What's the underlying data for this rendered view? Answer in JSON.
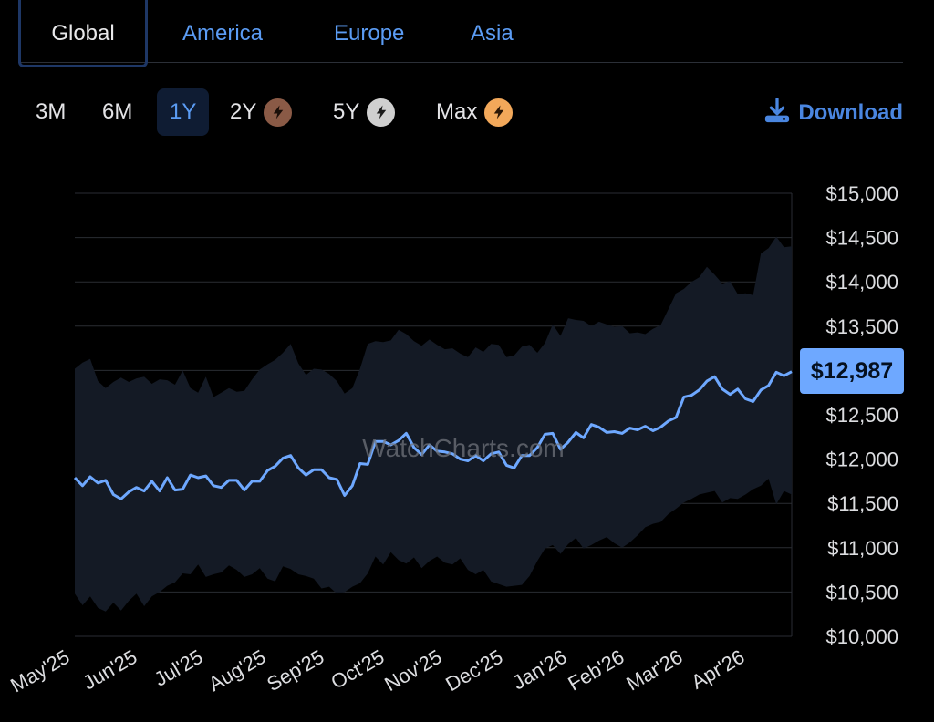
{
  "region_tabs": [
    {
      "label": "Global",
      "active": true
    },
    {
      "label": "America",
      "active": false
    },
    {
      "label": "Europe",
      "active": false
    },
    {
      "label": "Asia",
      "active": false
    }
  ],
  "range_buttons": [
    {
      "label": "3M",
      "active": false,
      "premium": null
    },
    {
      "label": "6M",
      "active": false,
      "premium": null
    },
    {
      "label": "1Y",
      "active": true,
      "premium": null
    },
    {
      "label": "2Y",
      "active": false,
      "premium": "bronze"
    },
    {
      "label": "5Y",
      "active": false,
      "premium": "silver"
    },
    {
      "label": "Max",
      "active": false,
      "premium": "gold"
    }
  ],
  "download_label": "Download",
  "watermark": "WatchCharts.com",
  "current_price": "$12,987",
  "colors": {
    "accent": "#5b9cf4",
    "line": "#6ea8ff",
    "band": "#141a25",
    "bronze": "#8a5a46",
    "silver": "#cfcfcf",
    "gold": "#f2a85a"
  },
  "chart_data": {
    "type": "line",
    "title": "",
    "xlabel": "",
    "ylabel": "",
    "ylim": [
      10000,
      15000
    ],
    "y_ticks": [
      "$10,000",
      "$10,500",
      "$11,000",
      "$11,500",
      "$12,000",
      "$12,500",
      "$13,000",
      "$13,500",
      "$14,000",
      "$14,500",
      "$15,000"
    ],
    "y_tick_values": [
      10000,
      10500,
      11000,
      11500,
      12000,
      12500,
      13000,
      13500,
      14000,
      14500,
      15000
    ],
    "x_ticks": [
      "May'25",
      "Jun'25",
      "Jul'25",
      "Aug'25",
      "Sep'25",
      "Oct'25",
      "Nov'25",
      "Dec'25",
      "Jan'26",
      "Feb'26",
      "Mar'26",
      "Apr'26"
    ],
    "grid": true,
    "series": [
      {
        "values": [
          11790,
          11700,
          11800,
          11730,
          11760,
          11600,
          11550,
          11630,
          11680,
          11640,
          11750,
          11640,
          11790,
          11650,
          11660,
          11820,
          11790,
          11810,
          11700,
          11680,
          11760,
          11760,
          11650,
          11750,
          11750,
          11870,
          11920,
          12010,
          12040,
          11900,
          11820,
          11880,
          11880,
          11790,
          11770,
          11590,
          11700,
          11950,
          11940,
          12200,
          12200,
          12160,
          12210,
          12290,
          12130,
          12050,
          12160,
          12090,
          12080,
          12060,
          12000,
          11980,
          12040,
          11980,
          12060,
          12080,
          11930,
          11900,
          12040,
          12040,
          12130,
          12280,
          12290,
          12110,
          12190,
          12300,
          12240,
          12390,
          12360,
          12300,
          12310,
          12290,
          12350,
          12330,
          12370,
          12320,
          12360,
          12430,
          12470,
          12700,
          12720,
          12780,
          12880,
          12930,
          12790,
          12730,
          12790,
          12680,
          12650,
          12780,
          12830,
          12980,
          12940,
          12987
        ],
        "upper": [
          13020,
          13090,
          13130,
          12880,
          12800,
          12870,
          12920,
          12870,
          12910,
          12930,
          12850,
          12900,
          12890,
          12840,
          13000,
          12800,
          12750,
          12930,
          12700,
          12750,
          12800,
          12760,
          12770,
          12900,
          13010,
          13070,
          13120,
          13200,
          13300,
          13080,
          12950,
          13020,
          13010,
          12960,
          12880,
          12740,
          12800,
          13020,
          13300,
          13330,
          13320,
          13340,
          13460,
          13410,
          13330,
          13280,
          13350,
          13290,
          13240,
          13250,
          13190,
          13150,
          13260,
          13210,
          13300,
          13290,
          13150,
          13170,
          13270,
          13290,
          13200,
          13310,
          13520,
          13390,
          13590,
          13570,
          13560,
          13500,
          13550,
          13520,
          13490,
          13500,
          13420,
          13430,
          13410,
          13470,
          13510,
          13690,
          13870,
          13920,
          14000,
          14050,
          14170,
          14080,
          13980,
          14010,
          13860,
          13870,
          13850,
          14320,
          14380,
          14510,
          14390,
          14400
        ],
        "lower": [
          10480,
          10350,
          10450,
          10320,
          10280,
          10380,
          10290,
          10400,
          10480,
          10340,
          10450,
          10500,
          10570,
          10610,
          10710,
          10700,
          10810,
          10670,
          10700,
          10720,
          10800,
          10750,
          10670,
          10700,
          10770,
          10650,
          10620,
          10790,
          10760,
          10700,
          10680,
          10650,
          10540,
          10560,
          10480,
          10500,
          10560,
          10600,
          10710,
          10900,
          10810,
          10950,
          10860,
          10820,
          10890,
          10770,
          10850,
          10900,
          10830,
          10810,
          10880,
          10750,
          10700,
          10750,
          10620,
          10590,
          10560,
          10570,
          10580,
          10680,
          10850,
          10990,
          11030,
          10930,
          11040,
          11110,
          10990,
          11030,
          11080,
          11120,
          11050,
          11000,
          11060,
          11140,
          11230,
          11270,
          11290,
          11380,
          11440,
          11510,
          11550,
          11600,
          11620,
          11640,
          11510,
          11560,
          11550,
          11600,
          11660,
          11700,
          11780,
          11490,
          11640,
          11600
        ]
      }
    ]
  }
}
